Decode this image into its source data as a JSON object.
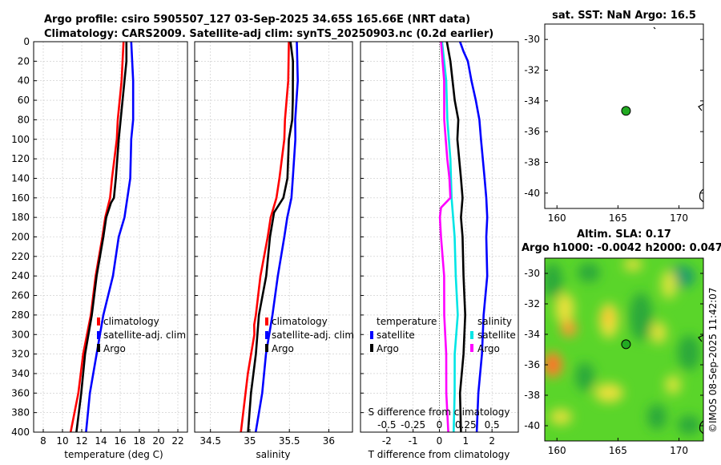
{
  "title": {
    "line1": "Argo profile: csiro 5905507_127 03-Sep-2025 34.65S 165.66E (NRT data)",
    "line2": "Climatology: CARS2009. Satellite-adj clim: synTS_20250903.nc (0.2d earlier)"
  },
  "colors": {
    "clim": "#ff0000",
    "sat": "#0000ff",
    "argo": "#000000",
    "sal_sat": "#00e5e5",
    "sal_argo": "#ff00ff"
  },
  "depth_ticks": [
    "0",
    "20",
    "40",
    "60",
    "80",
    "100",
    "120",
    "140",
    "160",
    "180",
    "200",
    "220",
    "240",
    "260",
    "280",
    "300",
    "320",
    "340",
    "360",
    "380",
    "400"
  ],
  "chart_data": [
    {
      "type": "line",
      "name": "temperature",
      "xlabel": "temperature (deg C)",
      "ylabel": "",
      "xlim": [
        7,
        23
      ],
      "ylim": [
        0,
        400
      ],
      "xticks": [
        "8",
        "10",
        "12",
        "14",
        "16",
        "18",
        "20",
        "22"
      ],
      "legend": [
        "climatology",
        "satellite-adj. clim",
        "Argo"
      ],
      "series": [
        {
          "name": "climatology",
          "depth": [
            0,
            40,
            80,
            100,
            140,
            160,
            180,
            200,
            240,
            280,
            320,
            360,
            400
          ],
          "values": [
            16.4,
            16.1,
            15.8,
            15.6,
            15.2,
            14.9,
            14.5,
            14.1,
            13.5,
            12.9,
            12.2,
            11.6,
            10.9
          ]
        },
        {
          "name": "satellite-adj. clim",
          "depth": [
            0,
            40,
            60,
            80,
            100,
            140,
            160,
            180,
            200,
            240,
            280,
            320,
            360,
            400
          ],
          "values": [
            17.2,
            17.3,
            17.4,
            17.3,
            17.2,
            17.0,
            16.8,
            16.4,
            15.9,
            15.2,
            14.3,
            13.5,
            12.9,
            12.4
          ]
        },
        {
          "name": "Argo",
          "depth": [
            0,
            20,
            60,
            80,
            100,
            140,
            160,
            165,
            180,
            200,
            240,
            280,
            320,
            360,
            400
          ],
          "values": [
            16.7,
            16.6,
            16.3,
            16.0,
            15.9,
            15.5,
            15.4,
            15.0,
            14.6,
            14.2,
            13.6,
            13.0,
            12.4,
            11.9,
            11.5
          ]
        }
      ]
    },
    {
      "type": "line",
      "name": "salinity",
      "xlabel": "salinity",
      "ylabel": "",
      "xlim": [
        34.3,
        36.3
      ],
      "ylim": [
        0,
        400
      ],
      "xticks": [
        "34.5",
        "35",
        "35.5",
        "36"
      ],
      "legend": [
        "climatology",
        "satellite-adj. clim",
        "Argo"
      ],
      "series": [
        {
          "name": "climatology",
          "depth": [
            0,
            40,
            80,
            100,
            140,
            160,
            180,
            200,
            240,
            280,
            290,
            300,
            340,
            400
          ],
          "values": [
            35.5,
            35.48,
            35.45,
            35.43,
            35.38,
            35.33,
            35.27,
            35.22,
            35.14,
            35.07,
            35.06,
            35.05,
            34.98,
            34.88
          ]
        },
        {
          "name": "satellite-adj. clim",
          "depth": [
            0,
            40,
            80,
            100,
            140,
            160,
            180,
            200,
            240,
            280,
            320,
            360,
            400
          ],
          "values": [
            35.6,
            35.6,
            35.58,
            35.57,
            35.55,
            35.52,
            35.48,
            35.43,
            35.36,
            35.28,
            35.21,
            35.15,
            35.08
          ]
        },
        {
          "name": "Argo",
          "depth": [
            0,
            20,
            60,
            80,
            100,
            140,
            160,
            175,
            200,
            240,
            280,
            320,
            360,
            400
          ],
          "values": [
            35.52,
            35.54,
            35.55,
            35.53,
            35.5,
            35.47,
            35.43,
            35.3,
            35.26,
            35.2,
            35.12,
            35.07,
            35.02,
            34.97
          ]
        }
      ]
    },
    {
      "type": "line",
      "name": "difference-from-climatology",
      "xlabel": "T difference from climatology",
      "xlabel_top": "S difference from climatology",
      "xlim": [
        -3,
        3
      ],
      "ylim": [
        0,
        400
      ],
      "xticks": [
        "-2",
        "-1",
        "0",
        "1",
        "2"
      ],
      "xticks_top": [
        "-0.5",
        "-0.25",
        "0",
        "0.25",
        "0.5"
      ],
      "legend_left_title": "temperature",
      "legend_left": [
        "satellite",
        "Argo"
      ],
      "legend_right_title": "salinity",
      "legend_right": [
        "satellite",
        "Argo"
      ],
      "series": [
        {
          "name": "T satellite",
          "depth": [
            0,
            10,
            20,
            40,
            60,
            80,
            100,
            140,
            160,
            180,
            200,
            240,
            280,
            320,
            360,
            400
          ],
          "values": [
            0.8,
            0.9,
            1.1,
            1.2,
            1.4,
            1.5,
            1.6,
            1.7,
            1.8,
            1.8,
            1.8,
            1.8,
            1.7,
            1.6,
            1.5,
            1.4
          ]
        },
        {
          "name": "T Argo",
          "depth": [
            0,
            20,
            60,
            80,
            100,
            140,
            160,
            180,
            200,
            240,
            280,
            320,
            360,
            400
          ],
          "values": [
            0.3,
            0.4,
            0.6,
            0.7,
            0.7,
            0.8,
            0.9,
            0.8,
            0.9,
            0.9,
            1.0,
            0.9,
            0.8,
            0.8
          ]
        },
        {
          "name": "S satellite",
          "depth": [
            0,
            40,
            80,
            120,
            160,
            200,
            240,
            280,
            320,
            360,
            400
          ],
          "values": [
            0.03,
            0.06,
            0.08,
            0.1,
            0.12,
            0.14,
            0.16,
            0.17,
            0.15,
            0.14,
            0.14
          ]
        },
        {
          "name": "S Argo",
          "depth": [
            0,
            40,
            80,
            120,
            140,
            160,
            170,
            180,
            200,
            240,
            280,
            320,
            360,
            400
          ],
          "values": [
            0.02,
            0.04,
            0.05,
            0.07,
            0.1,
            0.1,
            0.02,
            0.0,
            0.02,
            0.04,
            0.05,
            0.06,
            0.07,
            0.08
          ]
        }
      ]
    }
  ],
  "map_sst": {
    "title": "sat. SST: NaN Argo: 16.5",
    "yticks": [
      "-30",
      "-32",
      "-34",
      "-36",
      "-38",
      "-40"
    ],
    "xticks": [
      "160",
      "165",
      "170"
    ],
    "lon_range": [
      159,
      172
    ],
    "lat_range": [
      -41,
      -29
    ],
    "argo_lon": 165.66,
    "argo_lat": -34.65
  },
  "map_sla": {
    "title1": "Altim. SLA: 0.17",
    "title2": "Argo h1000: -0.0042 h2000: 0.047",
    "yticks": [
      "-30",
      "-32",
      "-34",
      "-36",
      "-38",
      "-40"
    ],
    "xticks": [
      "160",
      "165",
      "170"
    ],
    "lon_range": [
      159,
      172
    ],
    "lat_range": [
      -41,
      -29
    ],
    "argo_lon": 165.66,
    "argo_lat": -34.65
  },
  "timestamp": "©IMOS 08-Sep-2025 11:42:07"
}
